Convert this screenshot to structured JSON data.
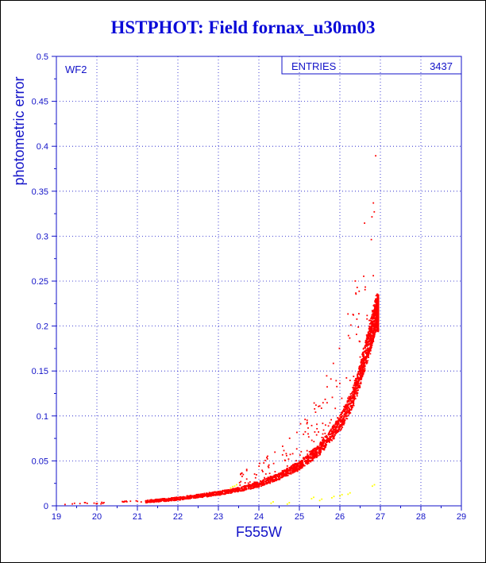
{
  "chart_data": {
    "type": "scatter",
    "title": "HSTPHOT: Field fornax_u30m03",
    "xlabel": "F555W",
    "ylabel": "photometric error",
    "xlim": [
      19,
      29
    ],
    "ylim": [
      0,
      0.5
    ],
    "x_ticks": [
      "19",
      "20",
      "21",
      "22",
      "23",
      "24",
      "25",
      "26",
      "27",
      "28",
      "29"
    ],
    "y_ticks": [
      "0",
      "0.05",
      "0.1",
      "0.15",
      "0.2",
      "0.25",
      "0.3",
      "0.35",
      "0.4",
      "0.45",
      "0.5"
    ],
    "grid": true,
    "panel_label": "WF2",
    "stats_box": {
      "label": "ENTRIES",
      "value": "3437"
    },
    "colors": {
      "axes": "#1212c8",
      "grid": "#1212c8",
      "main_points": "#ff0000",
      "secondary_points": "#ffff00",
      "title": "#0a0ad8"
    },
    "series": [
      {
        "color": "#ff0000",
        "description_points": [
          {
            "x": 19.3,
            "y": 0.001
          },
          {
            "x": 19.6,
            "y": 0.002
          },
          {
            "x": 20.0,
            "y": 0.002
          },
          {
            "x": 20.5,
            "y": 0.003
          },
          {
            "x": 21.0,
            "y": 0.004
          },
          {
            "x": 21.5,
            "y": 0.006
          },
          {
            "x": 22.0,
            "y": 0.008
          },
          {
            "x": 22.5,
            "y": 0.011
          },
          {
            "x": 23.0,
            "y": 0.014
          },
          {
            "x": 23.5,
            "y": 0.018
          },
          {
            "x": 24.0,
            "y": 0.024
          },
          {
            "x": 24.5,
            "y": 0.033
          },
          {
            "x": 25.0,
            "y": 0.045
          },
          {
            "x": 25.5,
            "y": 0.063
          },
          {
            "x": 26.0,
            "y": 0.092
          },
          {
            "x": 26.3,
            "y": 0.118
          },
          {
            "x": 26.5,
            "y": 0.145
          },
          {
            "x": 26.7,
            "y": 0.18
          },
          {
            "x": 26.9,
            "y": 0.215
          }
        ]
      },
      {
        "color": "#ffff00",
        "description_points": [
          {
            "x": 23.3,
            "y": 0.02
          },
          {
            "x": 23.4,
            "y": 0.022
          },
          {
            "x": 24.3,
            "y": 0.003
          },
          {
            "x": 24.7,
            "y": 0.002
          },
          {
            "x": 25.3,
            "y": 0.008
          },
          {
            "x": 25.5,
            "y": 0.006
          },
          {
            "x": 25.8,
            "y": 0.009
          },
          {
            "x": 26.0,
            "y": 0.011
          },
          {
            "x": 26.2,
            "y": 0.013
          },
          {
            "x": 26.8,
            "y": 0.022
          }
        ]
      }
    ]
  }
}
